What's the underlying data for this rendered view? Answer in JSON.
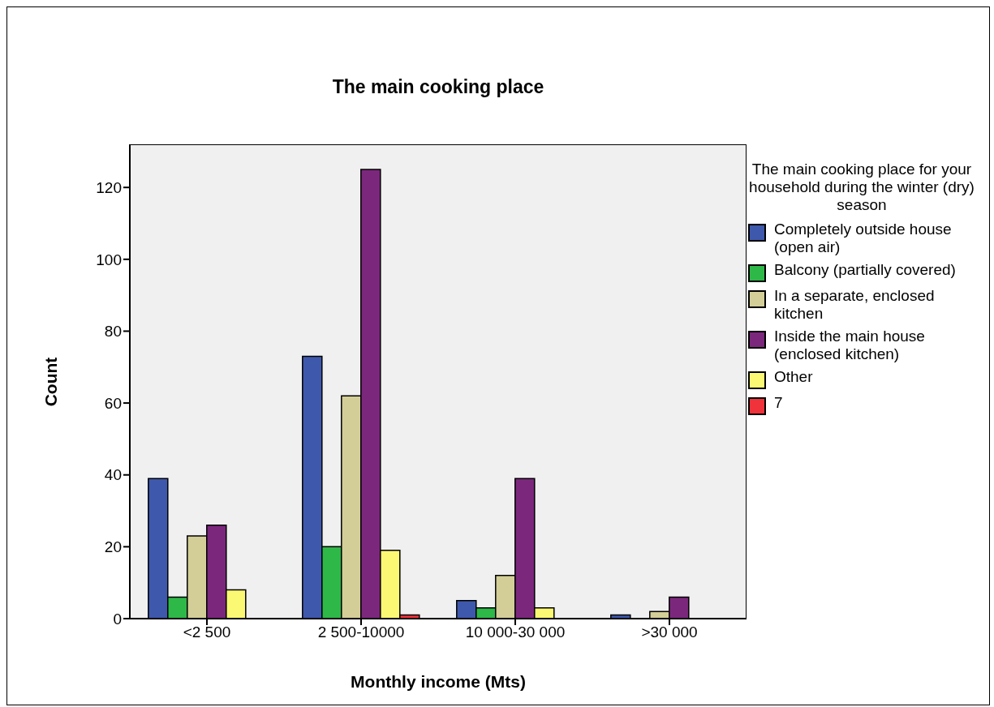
{
  "chart_data": {
    "type": "bar",
    "title": "The main cooking place",
    "xlabel": "Monthly income (Mts)",
    "ylabel": "Count",
    "legend_title": "The main cooking place for your household during the winter (dry) season",
    "legend": "right",
    "categories": [
      "<2 500",
      "2 500-10000",
      "10 000-30 000",
      ">30 000"
    ],
    "series": [
      {
        "name": "Completely outside house (open air)",
        "color": "#3e58ac",
        "values": [
          39,
          73,
          5,
          1
        ]
      },
      {
        "name": "Balcony (partially covered)",
        "color": "#2eb848",
        "values": [
          6,
          20,
          3,
          null
        ]
      },
      {
        "name": "In a separate, enclosed kitchen",
        "color": "#d3ce97",
        "values": [
          23,
          62,
          12,
          2
        ]
      },
      {
        "name": "Inside the main house (enclosed kitchen)",
        "color": "#7b287c",
        "values": [
          26,
          125,
          39,
          6
        ]
      },
      {
        "name": "Other",
        "color": "#fbf873",
        "values": [
          8,
          19,
          3,
          null
        ]
      },
      {
        "name": "7",
        "color": "#f0323a",
        "values": [
          null,
          1,
          null,
          null
        ]
      }
    ],
    "ylim": [
      0,
      132
    ],
    "yticks": [
      0,
      20,
      40,
      60,
      80,
      100,
      120
    ],
    "grid": false
  }
}
